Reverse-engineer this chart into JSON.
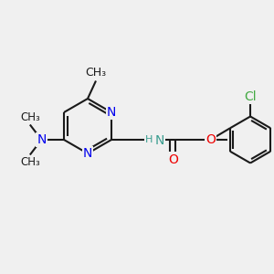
{
  "bg_color": "#f0f0f0",
  "bond_color": "#1a1a1a",
  "bond_width": 1.5,
  "atoms": {
    "N_blue": "#0000ee",
    "N_teal": "#3a9d8f",
    "O_red": "#ee0000",
    "Cl_green": "#44aa44",
    "C_black": "#1a1a1a"
  },
  "xlim": [
    0,
    10
  ],
  "ylim": [
    0,
    10
  ]
}
